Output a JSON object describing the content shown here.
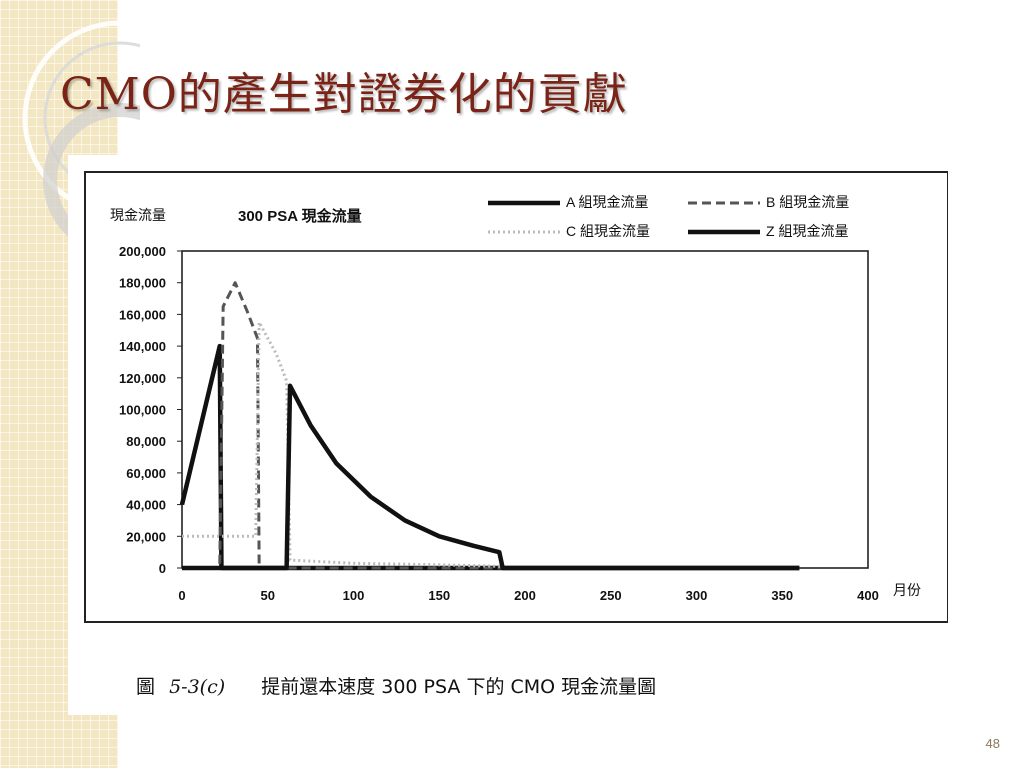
{
  "slide": {
    "title": "CMO的產生對證券化的貢獻",
    "page_number": "48",
    "caption_prefix": "圖",
    "caption_number": "5-3(c)",
    "caption_text": "提前還本速度 300 PSA 下的 CMO 現金流量圖"
  },
  "chart_data": {
    "type": "line",
    "title": "300 PSA 現金流量",
    "ylabel": "現金流量",
    "xlabel": "月份",
    "xlim": [
      0,
      400
    ],
    "ylim": [
      0,
      200000
    ],
    "x_ticks": [
      0,
      50,
      100,
      150,
      200,
      250,
      300,
      350,
      400
    ],
    "y_ticks": [
      0,
      20000,
      40000,
      60000,
      80000,
      100000,
      120000,
      140000,
      160000,
      180000,
      200000
    ],
    "y_tick_labels": [
      "0",
      "20,000",
      "40,000",
      "60,000",
      "80,000",
      "100,000",
      "120,000",
      "140,000",
      "160,000",
      "180,000",
      "200,000"
    ],
    "legend_position": "top-right",
    "series": [
      {
        "name": "A 組現金流量",
        "style": "solid-thick",
        "color": "#111111",
        "points": [
          [
            0,
            40000
          ],
          [
            22,
            140000
          ],
          [
            23,
            0
          ],
          [
            360,
            0
          ]
        ]
      },
      {
        "name": "B 組現金流量",
        "style": "dashed",
        "color": "#555555",
        "points": [
          [
            0,
            0
          ],
          [
            22,
            0
          ],
          [
            24,
            165000
          ],
          [
            31,
            180000
          ],
          [
            38,
            162000
          ],
          [
            44,
            145000
          ],
          [
            45,
            0
          ],
          [
            360,
            0
          ]
        ]
      },
      {
        "name": "C 組現金流量",
        "style": "dotted-light",
        "color": "#bbbbbb",
        "points": [
          [
            0,
            20000
          ],
          [
            24,
            20000
          ],
          [
            43,
            20000
          ],
          [
            45,
            155000
          ],
          [
            55,
            135000
          ],
          [
            61,
            118000
          ],
          [
            63,
            5000
          ],
          [
            100,
            3000
          ],
          [
            150,
            2000
          ],
          [
            187,
            1000
          ],
          [
            189,
            0
          ],
          [
            360,
            0
          ]
        ]
      },
      {
        "name": "Z 組現金流量",
        "style": "solid-thick",
        "color": "#111111",
        "points": [
          [
            0,
            0
          ],
          [
            61,
            0
          ],
          [
            63,
            115000
          ],
          [
            75,
            90000
          ],
          [
            90,
            66000
          ],
          [
            110,
            45000
          ],
          [
            130,
            30000
          ],
          [
            150,
            20000
          ],
          [
            170,
            14000
          ],
          [
            185,
            10000
          ],
          [
            187,
            0
          ],
          [
            360,
            0
          ]
        ]
      }
    ]
  }
}
